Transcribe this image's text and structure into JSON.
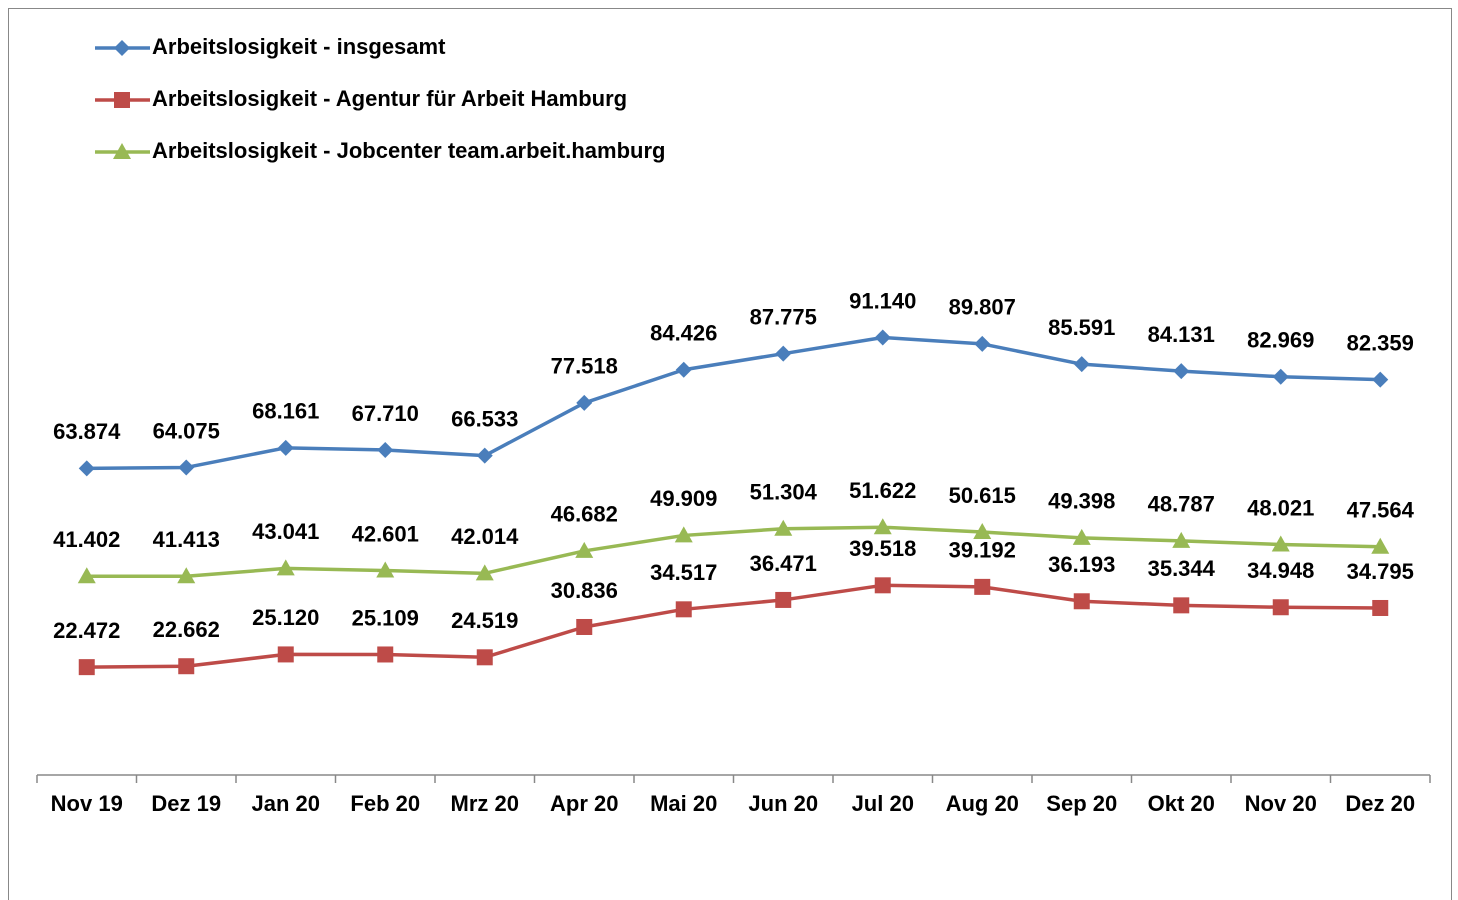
{
  "chart_data": {
    "type": "line",
    "categories": [
      "Nov 19",
      "Dez 19",
      "Jan 20",
      "Feb 20",
      "Mrz 20",
      "Apr 20",
      "Mai 20",
      "Jun 20",
      "Jul 20",
      "Aug 20",
      "Sep 20",
      "Okt 20",
      "Nov 20",
      "Dez 20"
    ],
    "ylim": [
      0,
      100000
    ],
    "legend": "top-left",
    "series": [
      {
        "name": "Arbeitslosigkeit - insgesamt",
        "color": "#4a7ebb",
        "marker": "diamond",
        "values": [
          63874,
          64075,
          68161,
          67710,
          66533,
          77518,
          84426,
          87775,
          91140,
          89807,
          85591,
          84131,
          82969,
          82359
        ],
        "value_labels": [
          "63.874",
          "64.075",
          "68.161",
          "67.710",
          "66.533",
          "77.518",
          "84.426",
          "87.775",
          "91.140",
          "89.807",
          "85.591",
          "84.131",
          "82.969",
          "82.359"
        ]
      },
      {
        "name": "Arbeitslosigkeit - Agentur für Arbeit Hamburg",
        "color": "#be4b48",
        "marker": "square",
        "values": [
          22472,
          22662,
          25120,
          25109,
          24519,
          30836,
          34517,
          36471,
          39518,
          39192,
          36193,
          35344,
          34948,
          34795
        ],
        "value_labels": [
          "22.472",
          "22.662",
          "25.120",
          "25.109",
          "24.519",
          "30.836",
          "34.517",
          "36.471",
          "39.518",
          "39.192",
          "36.193",
          "35.344",
          "34.948",
          "34.795"
        ]
      },
      {
        "name": "Arbeitslosigkeit - Jobcenter team.arbeit.hamburg",
        "color": "#98b954",
        "marker": "triangle",
        "values": [
          41402,
          41413,
          43041,
          42601,
          42014,
          46682,
          49909,
          51304,
          51622,
          50615,
          49398,
          48787,
          48021,
          47564
        ],
        "value_labels": [
          "41.402",
          "41.413",
          "43.041",
          "42.601",
          "42.014",
          "46.682",
          "49.909",
          "51.304",
          "51.622",
          "50.615",
          "49.398",
          "48.787",
          "48.021",
          "47.564"
        ]
      }
    ]
  }
}
